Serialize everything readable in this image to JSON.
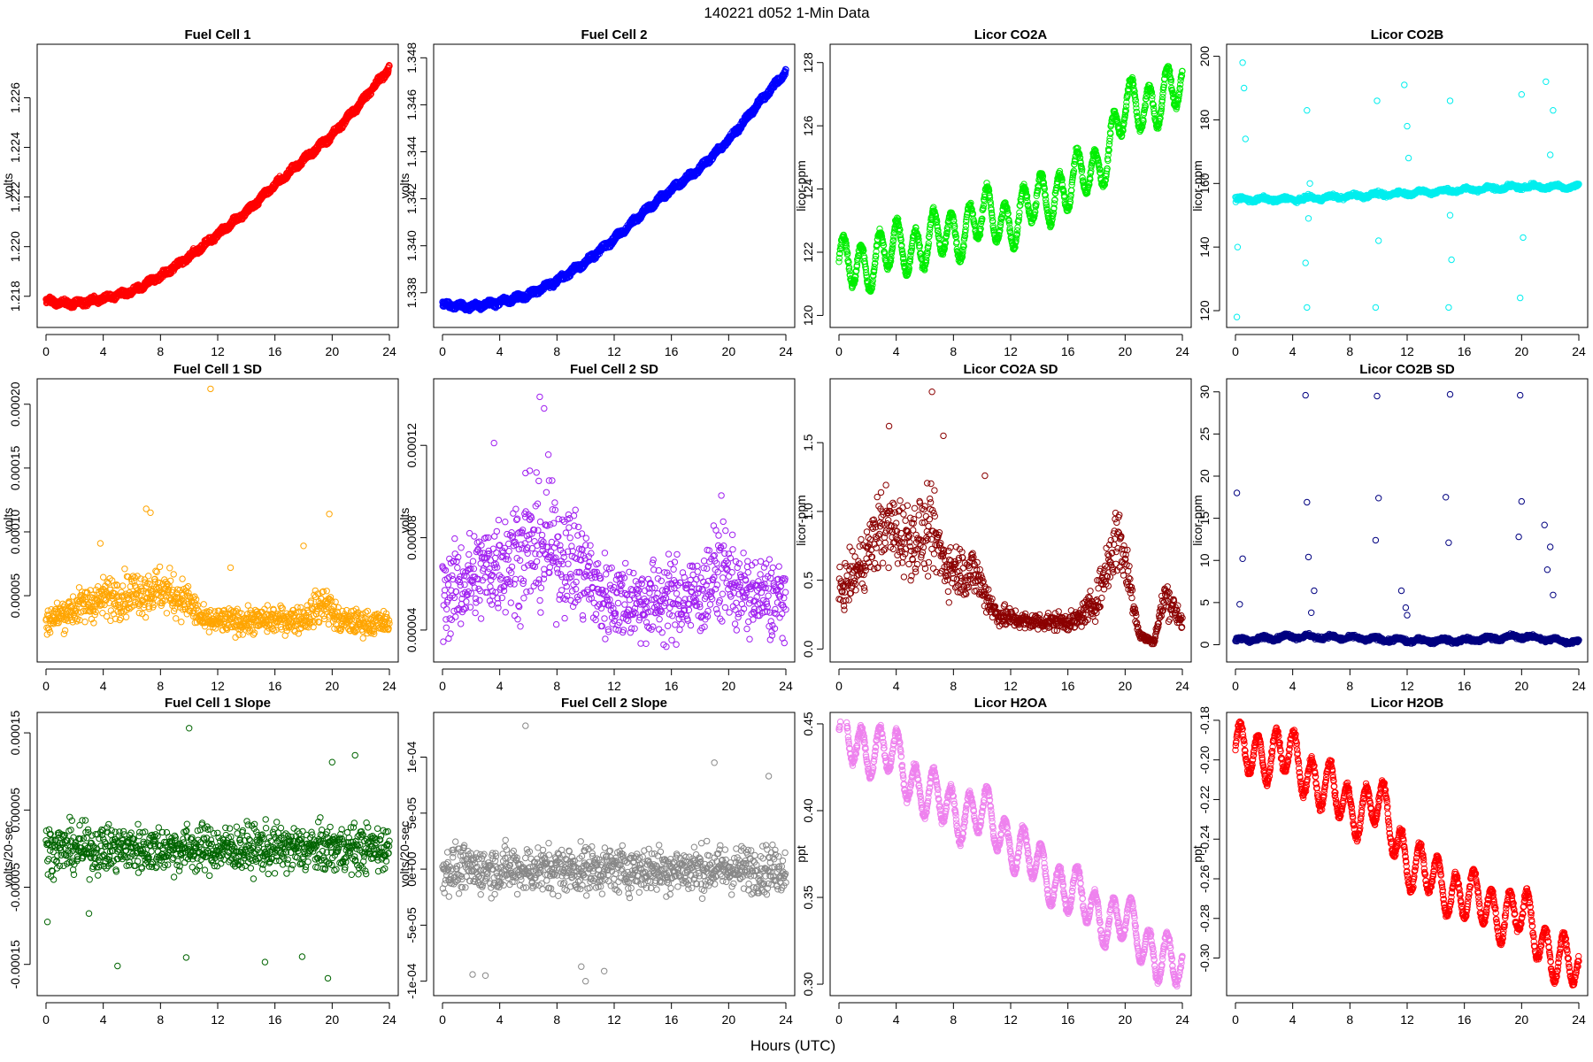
{
  "figure": {
    "title": "140221    d052    1-Min Data",
    "xlabel": "Hours (UTC)"
  },
  "chart_data": [
    {
      "type": "scatter",
      "title": "Fuel Cell 1",
      "ylabel": "volts",
      "color": "#ff0000",
      "xlim": [
        0,
        24
      ],
      "ylim": [
        1.2171,
        1.2278
      ],
      "xticks": [
        0,
        4,
        8,
        12,
        16,
        20,
        24
      ],
      "yticks": [
        1.218,
        1.22,
        1.222,
        1.224,
        1.226
      ],
      "ytick_labels": [
        "1.218",
        "1.220",
        "1.222",
        "1.224",
        "1.226"
      ],
      "trend": [
        [
          0,
          1.2178
        ],
        [
          2,
          1.2177
        ],
        [
          4,
          1.2179
        ],
        [
          6,
          1.2182
        ],
        [
          8,
          1.2188
        ],
        [
          10,
          1.2196
        ],
        [
          12,
          1.2205
        ],
        [
          14,
          1.2214
        ],
        [
          16,
          1.2225
        ],
        [
          18,
          1.2235
        ],
        [
          20,
          1.2245
        ],
        [
          22,
          1.2258
        ],
        [
          24,
          1.2272
        ]
      ],
      "pattern": "thick"
    },
    {
      "type": "scatter",
      "title": "Fuel Cell 2",
      "ylabel": "volts",
      "color": "#0000ff",
      "xlim": [
        0,
        24
      ],
      "ylim": [
        1.3369,
        1.3482
      ],
      "xticks": [
        0,
        4,
        8,
        12,
        16,
        20,
        24
      ],
      "yticks": [
        1.338,
        1.34,
        1.342,
        1.344,
        1.346,
        1.348
      ],
      "ytick_labels": [
        "1.338",
        "1.340",
        "1.342",
        "1.344",
        "1.346",
        "1.348"
      ],
      "trend": [
        [
          0,
          1.3375
        ],
        [
          2,
          1.3374
        ],
        [
          4,
          1.3376
        ],
        [
          6,
          1.3379
        ],
        [
          8,
          1.3385
        ],
        [
          10,
          1.3393
        ],
        [
          12,
          1.3403
        ],
        [
          14,
          1.3414
        ],
        [
          16,
          1.3424
        ],
        [
          18,
          1.3433
        ],
        [
          20,
          1.3445
        ],
        [
          22,
          1.346
        ],
        [
          24,
          1.3474
        ]
      ],
      "pattern": "thick"
    },
    {
      "type": "scatter",
      "title": "Licor CO2A",
      "ylabel": "licor-ppm",
      "color": "#00ee00",
      "xlim": [
        0,
        24
      ],
      "ylim": [
        119.9,
        128.3
      ],
      "xticks": [
        0,
        4,
        8,
        12,
        16,
        20,
        24
      ],
      "yticks": [
        120,
        122,
        124,
        126,
        128
      ],
      "ytick_labels": [
        "120",
        "122",
        "124",
        "126",
        "128"
      ],
      "trend": [
        [
          0,
          121.5
        ],
        [
          2,
          121.7
        ],
        [
          4,
          122.1
        ],
        [
          6,
          122.3
        ],
        [
          8,
          122.6
        ],
        [
          10,
          123.1
        ],
        [
          12,
          123.0
        ],
        [
          14,
          123.6
        ],
        [
          16,
          124.1
        ],
        [
          18,
          124.6
        ],
        [
          20,
          126.5
        ],
        [
          22,
          126.8
        ],
        [
          24,
          127.2
        ]
      ],
      "pattern": "wave"
    },
    {
      "type": "scatter",
      "title": "Licor CO2B",
      "ylabel": "licor-ppm",
      "color": "#00eeee",
      "xlim": [
        0,
        24
      ],
      "ylim": [
        117.5,
        201
      ],
      "xticks": [
        0,
        4,
        8,
        12,
        16,
        20,
        24
      ],
      "yticks": [
        120,
        140,
        160,
        180,
        200
      ],
      "ytick_labels": [
        "120",
        "140",
        "160",
        "180",
        "200"
      ],
      "trend": [
        [
          0,
          155
        ],
        [
          4,
          155
        ],
        [
          8,
          156
        ],
        [
          12,
          157
        ],
        [
          16,
          158
        ],
        [
          20,
          159
        ],
        [
          24,
          159
        ]
      ],
      "pattern": "spikes",
      "spikes": [
        [
          0.1,
          118
        ],
        [
          0.15,
          140
        ],
        [
          0.5,
          198
        ],
        [
          0.6,
          190
        ],
        [
          0.7,
          174
        ],
        [
          4.9,
          135
        ],
        [
          5.0,
          121
        ],
        [
          5.0,
          183
        ],
        [
          5.1,
          149
        ],
        [
          5.2,
          160
        ],
        [
          9.8,
          121
        ],
        [
          9.9,
          186
        ],
        [
          10.0,
          142
        ],
        [
          11.8,
          191
        ],
        [
          12.0,
          178
        ],
        [
          12.1,
          168
        ],
        [
          14.9,
          121
        ],
        [
          15.0,
          186
        ],
        [
          15.0,
          150
        ],
        [
          15.1,
          136
        ],
        [
          19.9,
          124
        ],
        [
          20.0,
          188
        ],
        [
          20.1,
          143
        ],
        [
          21.7,
          192
        ],
        [
          22.2,
          183
        ],
        [
          22.0,
          169
        ]
      ]
    },
    {
      "type": "scatter",
      "title": "Fuel Cell 1 SD",
      "ylabel": "volts",
      "color": "#ffa500",
      "xlim": [
        0,
        24
      ],
      "ylim": [
        5e-06,
        0.000213
      ],
      "xticks": [
        0,
        4,
        8,
        12,
        16,
        20,
        24
      ],
      "yticks": [
        5e-05,
        0.0001,
        0.00015,
        0.0002
      ],
      "ytick_labels": [
        "0.00005",
        "0.00010",
        "0.00015",
        "0.00020"
      ],
      "trend": [
        [
          0,
          3e-05
        ],
        [
          2,
          4e-05
        ],
        [
          4,
          4.8e-05
        ],
        [
          6,
          5.2e-05
        ],
        [
          8,
          5.5e-05
        ],
        [
          10,
          4.5e-05
        ],
        [
          11,
          3e-05
        ],
        [
          14,
          3e-05
        ],
        [
          18,
          3.2e-05
        ],
        [
          19.5,
          4.5e-05
        ],
        [
          20.5,
          3e-05
        ],
        [
          24,
          2.8e-05
        ]
      ],
      "pattern": "noise",
      "spikes": [
        [
          11.5,
          0.000212
        ],
        [
          7.0,
          0.000118
        ],
        [
          7.3,
          0.000115
        ],
        [
          19.8,
          0.000114
        ],
        [
          18.0,
          8.9e-05
        ],
        [
          12.9,
          7.2e-05
        ],
        [
          3.8,
          9.1e-05
        ]
      ]
    },
    {
      "type": "scatter",
      "title": "Fuel Cell 2 SD",
      "ylabel": "volts",
      "color": "#a020f0",
      "xlim": [
        0,
        24
      ],
      "ylim": [
        3e-05,
        0.000145
      ],
      "xticks": [
        0,
        4,
        8,
        12,
        16,
        20,
        24
      ],
      "yticks": [
        4e-05,
        8e-05,
        0.00012
      ],
      "ytick_labels": [
        "0.00004",
        "0.00008",
        "0.00012"
      ],
      "trend": [
        [
          0,
          5.5e-05
        ],
        [
          2,
          6.2e-05
        ],
        [
          4,
          7e-05
        ],
        [
          6,
          7.5e-05
        ],
        [
          8,
          7.5e-05
        ],
        [
          10,
          6.5e-05
        ],
        [
          11,
          5.5e-05
        ],
        [
          14,
          5.2e-05
        ],
        [
          18,
          5.5e-05
        ],
        [
          19.5,
          6.8e-05
        ],
        [
          21,
          5.5e-05
        ],
        [
          24,
          5.3e-05
        ]
      ],
      "pattern": "noise",
      "spikes": [
        [
          6.8,
          0.000141
        ],
        [
          7.1,
          0.000136
        ],
        [
          5.8,
          0.000108
        ],
        [
          3.6,
          0.000121
        ],
        [
          7.4,
          0.000116
        ],
        [
          6.1,
          0.000109
        ]
      ]
    },
    {
      "type": "scatter",
      "title": "Licor CO2A SD",
      "ylabel": "licor-ppm",
      "color": "#8b0000",
      "xlim": [
        0,
        24
      ],
      "ylim": [
        -0.03,
        1.9
      ],
      "xticks": [
        0,
        4,
        8,
        12,
        16,
        20,
        24
      ],
      "yticks": [
        0.0,
        0.5,
        1.0,
        1.5
      ],
      "ytick_labels": [
        "0.0",
        "0.5",
        "1.0",
        "1.5"
      ],
      "trend": [
        [
          0,
          0.4
        ],
        [
          1.5,
          0.6
        ],
        [
          3,
          0.9
        ],
        [
          4,
          0.85
        ],
        [
          5,
          0.8
        ],
        [
          6.5,
          0.85
        ],
        [
          7.5,
          0.6
        ],
        [
          9.5,
          0.55
        ],
        [
          11,
          0.25
        ],
        [
          13,
          0.2
        ],
        [
          16.5,
          0.2
        ],
        [
          18,
          0.35
        ],
        [
          19.5,
          0.85
        ],
        [
          20.3,
          0.5
        ],
        [
          21,
          0.1
        ],
        [
          22,
          0.05
        ],
        [
          22.8,
          0.4
        ],
        [
          24,
          0.2
        ]
      ],
      "pattern": "noise",
      "spikes": [
        [
          6.5,
          1.87
        ],
        [
          3.5,
          1.62
        ],
        [
          7.3,
          1.55
        ],
        [
          10.2,
          1.26
        ]
      ]
    },
    {
      "type": "scatter",
      "title": "Licor CO2B SD",
      "ylabel": "licor-ppm",
      "color": "#000080",
      "xlim": [
        0,
        24
      ],
      "ylim": [
        -1,
        30.5
      ],
      "xticks": [
        0,
        4,
        8,
        12,
        16,
        20,
        24
      ],
      "yticks": [
        0,
        5,
        10,
        15,
        20,
        25,
        30
      ],
      "ytick_labels": [
        "0",
        "5",
        "10",
        "15",
        "20",
        "25",
        "30"
      ],
      "trend": [
        [
          0,
          0.5
        ],
        [
          4,
          1.0
        ],
        [
          8,
          0.8
        ],
        [
          12,
          0.5
        ],
        [
          16,
          0.5
        ],
        [
          20,
          1.0
        ],
        [
          22,
          0.6
        ],
        [
          24,
          0.3
        ]
      ],
      "pattern": "spikes",
      "spikes": [
        [
          0.1,
          18
        ],
        [
          0.5,
          10.2
        ],
        [
          0.3,
          4.8
        ],
        [
          4.9,
          29.6
        ],
        [
          5.0,
          16.9
        ],
        [
          5.1,
          10.4
        ],
        [
          5.5,
          6.4
        ],
        [
          5.3,
          3.8
        ],
        [
          9.8,
          12.4
        ],
        [
          9.9,
          29.5
        ],
        [
          10.0,
          17.4
        ],
        [
          11.6,
          6.4
        ],
        [
          11.9,
          4.4
        ],
        [
          12.0,
          3.5
        ],
        [
          14.7,
          17.5
        ],
        [
          14.9,
          12.1
        ],
        [
          15.0,
          29.7
        ],
        [
          19.8,
          12.8
        ],
        [
          19.9,
          29.6
        ],
        [
          20.0,
          17
        ],
        [
          21.6,
          14.2
        ],
        [
          22.0,
          11.6
        ],
        [
          21.8,
          8.9
        ],
        [
          22.2,
          5.9
        ]
      ]
    },
    {
      "type": "scatter",
      "title": "Fuel Cell 1 Slope",
      "ylabel": "volts/20-sec",
      "color": "#006400",
      "xlim": [
        0,
        24
      ],
      "ylim": [
        -0.000179,
        0.000165
      ],
      "xticks": [
        0,
        4,
        8,
        12,
        16,
        20,
        24
      ],
      "yticks": [
        -0.00015,
        -5e-05,
        5e-05,
        0.00015
      ],
      "ytick_labels": [
        "-0.00015",
        "-0.00005",
        "0.00005",
        "0.00015"
      ],
      "trend": [
        [
          0,
          0
        ],
        [
          24,
          0
        ]
      ],
      "pattern": "noise",
      "spikes": [
        [
          10.0,
          0.000156
        ],
        [
          19.7,
          -0.000168
        ],
        [
          5.0,
          -0.000152
        ],
        [
          9.8,
          -0.000141
        ],
        [
          17.9,
          -0.00014
        ],
        [
          15.3,
          -0.000147
        ],
        [
          20.0,
          0.000112
        ],
        [
          21.6,
          0.000121
        ],
        [
          0.1,
          -9.5e-05
        ],
        [
          3.0,
          -8.4e-05
        ]
      ]
    },
    {
      "type": "scatter",
      "title": "Fuel Cell 2 Slope",
      "ylabel": "volts/20-sec",
      "color": "#888888",
      "xlim": [
        0,
        24
      ],
      "ylim": [
        -0.000105,
        0.000132
      ],
      "xticks": [
        0,
        4,
        8,
        12,
        16,
        20,
        24
      ],
      "yticks": [
        -0.0001,
        -5e-05,
        0.0,
        5e-05,
        0.0001
      ],
      "ytick_labels": [
        "-1e-04",
        "-5e-05",
        "0e+00",
        "5e-05",
        "1e-04"
      ],
      "trend": [
        [
          0,
          0
        ],
        [
          24,
          0
        ]
      ],
      "pattern": "noise",
      "spikes": [
        [
          5.8,
          0.000128
        ],
        [
          2.1,
          -9.4e-05
        ],
        [
          3.0,
          -9.5e-05
        ],
        [
          10.0,
          -0.0001
        ],
        [
          11.3,
          -9.1e-05
        ],
        [
          9.7,
          -8.7e-05
        ],
        [
          19.0,
          9.5e-05
        ],
        [
          22.8,
          8.3e-05
        ]
      ]
    },
    {
      "type": "scatter",
      "title": "Licor H2OA",
      "ylabel": "ppt",
      "color": "#ee82ee",
      "xlim": [
        0,
        24
      ],
      "ylim": [
        0.2985,
        0.4515
      ],
      "xticks": [
        0,
        4,
        8,
        12,
        16,
        20,
        24
      ],
      "yticks": [
        0.3,
        0.35,
        0.4,
        0.45
      ],
      "ytick_labels": [
        "0.30",
        "0.35",
        "0.40",
        "0.45"
      ],
      "trend": [
        [
          0,
          0.442
        ],
        [
          2,
          0.437
        ],
        [
          4,
          0.43
        ],
        [
          6,
          0.41
        ],
        [
          8,
          0.4
        ],
        [
          10,
          0.398
        ],
        [
          12,
          0.383
        ],
        [
          14,
          0.366
        ],
        [
          16,
          0.355
        ],
        [
          18,
          0.341
        ],
        [
          20,
          0.335
        ],
        [
          22,
          0.32
        ],
        [
          24,
          0.306
        ]
      ],
      "pattern": "wave"
    },
    {
      "type": "scatter",
      "title": "Licor H2OB",
      "ylabel": "ppt",
      "color": "#ff0000",
      "xlim": [
        0,
        24
      ],
      "ylim": [
        -0.3145,
        -0.1805
      ],
      "xticks": [
        0,
        4,
        8,
        12,
        16,
        20,
        24
      ],
      "yticks": [
        -0.3,
        -0.28,
        -0.26,
        -0.24,
        -0.22,
        -0.2,
        -0.18
      ],
      "ytick_labels": [
        "-0.30",
        "-0.28",
        "-0.26",
        "-0.24",
        "-0.22",
        "-0.20",
        "-0.18"
      ],
      "trend": [
        [
          0,
          -0.197
        ],
        [
          2,
          -0.196
        ],
        [
          4,
          -0.199
        ],
        [
          6,
          -0.212
        ],
        [
          8,
          -0.225
        ],
        [
          10,
          -0.222
        ],
        [
          12,
          -0.25
        ],
        [
          14,
          -0.262
        ],
        [
          16,
          -0.268
        ],
        [
          18,
          -0.276
        ],
        [
          20,
          -0.278
        ],
        [
          22,
          -0.296
        ],
        [
          24,
          -0.308
        ]
      ],
      "pattern": "wave"
    }
  ]
}
